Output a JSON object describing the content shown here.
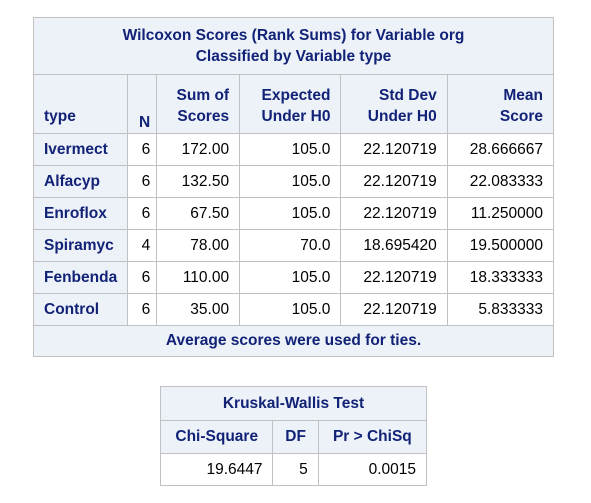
{
  "wilcoxon": {
    "title_line1": "Wilcoxon Scores (Rank Sums) for Variable org",
    "title_line2": "Classified by Variable type",
    "headers": {
      "type": "type",
      "n": "N",
      "sum_line1": "Sum of",
      "sum_line2": "Scores",
      "expected_line1": "Expected",
      "expected_line2": "Under H0",
      "stddev_line1": "Std Dev",
      "stddev_line2": "Under H0",
      "mean_line1": "Mean",
      "mean_line2": "Score"
    },
    "rows": [
      {
        "type": "Ivermect",
        "n": "6",
        "sum": "172.00",
        "expected": "105.0",
        "stddev": "22.120719",
        "mean": "28.666667"
      },
      {
        "type": "Alfacyp",
        "n": "6",
        "sum": "132.50",
        "expected": "105.0",
        "stddev": "22.120719",
        "mean": "22.083333"
      },
      {
        "type": "Enroflox",
        "n": "6",
        "sum": "67.50",
        "expected": "105.0",
        "stddev": "22.120719",
        "mean": "11.250000"
      },
      {
        "type": "Spiramyc",
        "n": "4",
        "sum": "78.00",
        "expected": "70.0",
        "stddev": "18.695420",
        "mean": "19.500000"
      },
      {
        "type": "Fenbenda",
        "n": "6",
        "sum": "110.00",
        "expected": "105.0",
        "stddev": "22.120719",
        "mean": "18.333333"
      },
      {
        "type": "Control",
        "n": "6",
        "sum": "35.00",
        "expected": "105.0",
        "stddev": "22.120719",
        "mean": "5.833333"
      }
    ],
    "footnote": "Average scores were used for ties."
  },
  "kruskal": {
    "title": "Kruskal-Wallis Test",
    "headers": {
      "chisq": "Chi-Square",
      "df": "DF",
      "p": "Pr > ChiSq"
    },
    "row": {
      "chisq": "19.6447",
      "df": "5",
      "p": "0.0015"
    }
  }
}
